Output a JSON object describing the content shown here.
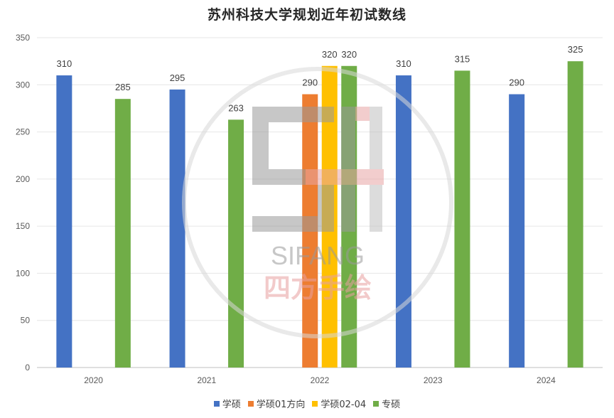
{
  "chart_data": {
    "type": "bar",
    "title": "苏州科技大学规划近年初试数线",
    "categories": [
      "2020",
      "2021",
      "2022",
      "2023",
      "2024"
    ],
    "series": [
      {
        "name": "学硕",
        "color": "#4472C4",
        "values": [
          310,
          295,
          null,
          310,
          290
        ]
      },
      {
        "name": "学硕01方向",
        "color": "#ED7D31",
        "values": [
          null,
          null,
          290,
          null,
          null
        ]
      },
      {
        "name": "学硕02-04",
        "color": "#FFC000",
        "values": [
          null,
          null,
          320,
          null,
          null
        ]
      },
      {
        "name": "专硕",
        "color": "#70AD47",
        "values": [
          285,
          263,
          320,
          315,
          325
        ]
      }
    ],
    "ylim": [
      0,
      350
    ],
    "yticks": [
      0,
      50,
      100,
      150,
      200,
      250,
      300,
      350
    ],
    "grid": true,
    "legend": "bottom"
  },
  "watermark": {
    "latin": "SIFANG",
    "chinese": "四方手绘"
  }
}
